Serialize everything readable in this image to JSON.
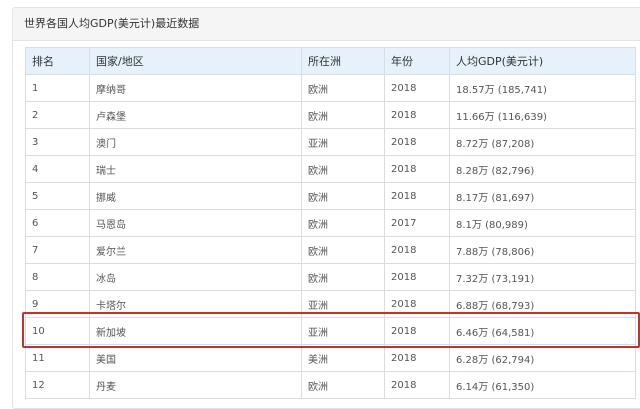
{
  "panel": {
    "title": "世界各国人均GDP(美元计)最近数据"
  },
  "table": {
    "headers": [
      "排名",
      "国家/地区",
      "所在洲",
      "年份",
      "人均GDP(美元计)"
    ],
    "rows": [
      [
        "1",
        "摩纳哥",
        "欧洲",
        "2018",
        "18.57万 (185,741)"
      ],
      [
        "2",
        "卢森堡",
        "欧洲",
        "2018",
        "11.66万 (116,639)"
      ],
      [
        "3",
        "澳门",
        "亚洲",
        "2018",
        "8.72万 (87,208)"
      ],
      [
        "4",
        "瑞士",
        "欧洲",
        "2018",
        "8.28万 (82,796)"
      ],
      [
        "5",
        "挪威",
        "欧洲",
        "2018",
        "8.17万 (81,697)"
      ],
      [
        "6",
        "马恩岛",
        "欧洲",
        "2017",
        "8.1万 (80,989)"
      ],
      [
        "7",
        "爱尔兰",
        "欧洲",
        "2018",
        "7.88万 (78,806)"
      ],
      [
        "8",
        "冰岛",
        "欧洲",
        "2018",
        "7.32万 (73,191)"
      ],
      [
        "9",
        "卡塔尔",
        "亚洲",
        "2018",
        "6.88万 (68,793)"
      ],
      [
        "10",
        "新加坡",
        "亚洲",
        "2018",
        "6.46万 (64,581)"
      ],
      [
        "11",
        "美国",
        "美洲",
        "2018",
        "6.28万 (62,794)"
      ],
      [
        "12",
        "丹麦",
        "欧洲",
        "2018",
        "6.14万 (61,350)"
      ]
    ],
    "highlighted_rank": "10",
    "highlight_color": "#c9302c"
  }
}
